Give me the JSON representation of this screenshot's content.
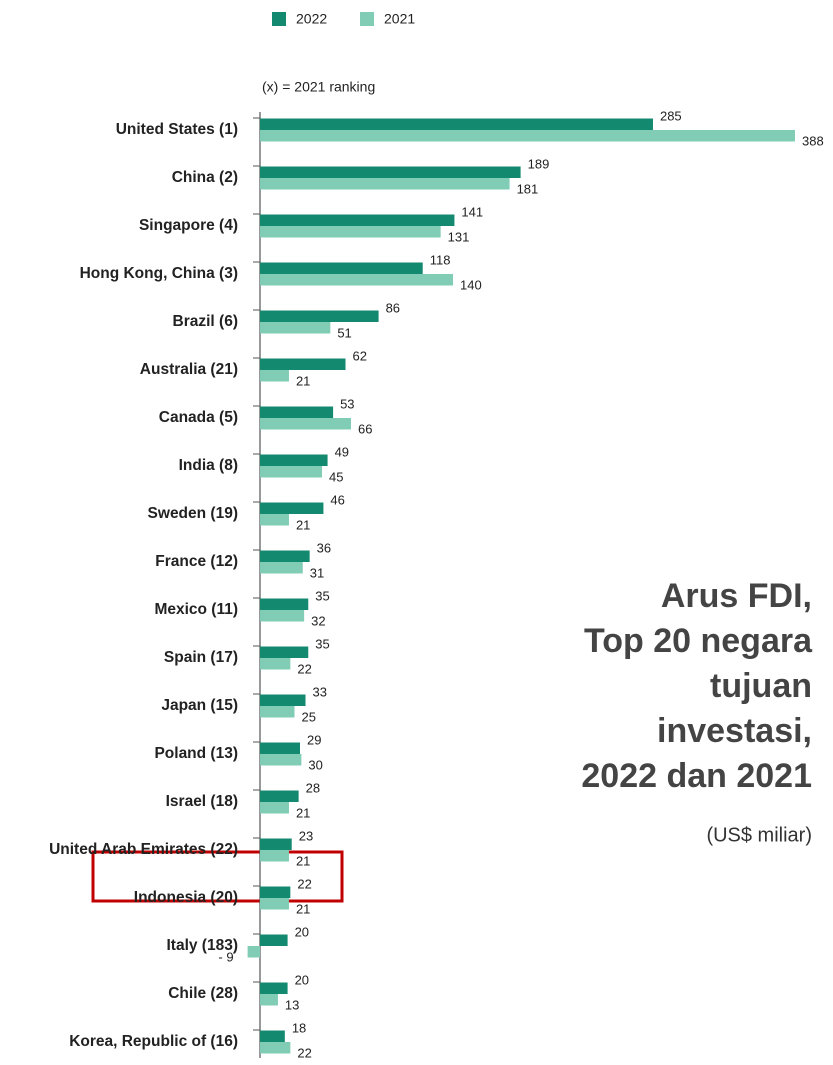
{
  "chart_data": {
    "type": "bar",
    "orientation": "horizontal",
    "title": [
      "Arus FDI,",
      "Top 20 negara",
      "tujuan",
      "investasi,",
      "2022 dan 2021"
    ],
    "subtitle": "(US$ miliar)",
    "annotation": "(x) = 2021  ranking",
    "categories": [
      "United States (1)",
      "China (2)",
      "Singapore (4)",
      "Hong Kong, China (3)",
      "Brazil (6)",
      "Australia (21)",
      "Canada (5)",
      "India (8)",
      "Sweden (19)",
      "France (12)",
      "Mexico (11)",
      "Spain (17)",
      "Japan (15)",
      "Poland (13)",
      "Israel (18)",
      "United Arab Emirates (22)",
      "Indonesia (20)",
      "Italy (183)",
      "Chile (28)",
      "Korea, Republic of (16)"
    ],
    "series": [
      {
        "name": "2022",
        "color": "#138a6f",
        "values": [
          285,
          189,
          141,
          118,
          86,
          62,
          53,
          49,
          46,
          36,
          35,
          35,
          33,
          29,
          28,
          23,
          22,
          20,
          20,
          18
        ]
      },
      {
        "name": "2021",
        "color": "#80ccb4",
        "values": [
          388,
          181,
          131,
          140,
          51,
          21,
          66,
          45,
          21,
          31,
          32,
          22,
          25,
          30,
          21,
          21,
          21,
          -9,
          13,
          22
        ],
        "value_labels": [
          "388",
          "181",
          "131",
          "140",
          "51",
          "21",
          "66",
          "45",
          "21",
          "31",
          "32",
          "22",
          "25",
          "30",
          "21",
          "21",
          "21",
          "- 9",
          "13",
          "22"
        ]
      }
    ],
    "xlim": [
      -9,
      388
    ],
    "legend": "top"
  }
}
